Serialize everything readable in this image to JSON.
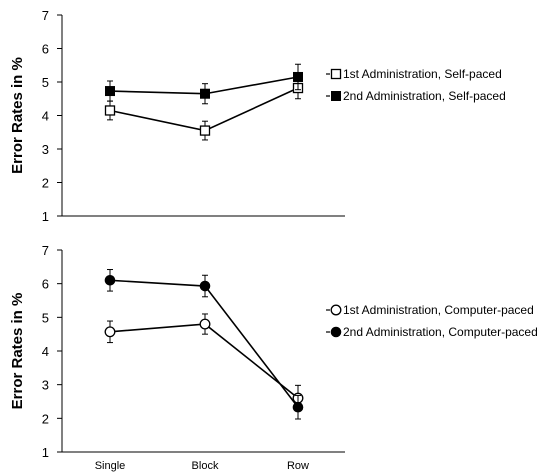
{
  "chart_data": [
    {
      "type": "line",
      "categories": [
        "Single",
        "Block",
        "Row"
      ],
      "ylabel": "Error Rates in %",
      "ylim": [
        1,
        7
      ],
      "yticks": [
        1,
        2,
        3,
        4,
        5,
        6,
        7
      ],
      "show_x_tick_labels": false,
      "legend_position": "right",
      "series": [
        {
          "name": "1st Administration, Self-paced",
          "marker": "open-square",
          "values": [
            4.15,
            3.55,
            4.82
          ],
          "errors": [
            0.28,
            0.28,
            0.32
          ]
        },
        {
          "name": "2nd Administration, Self-paced",
          "marker": "filled-square",
          "values": [
            4.73,
            4.65,
            5.15
          ],
          "errors": [
            0.3,
            0.3,
            0.38
          ]
        }
      ]
    },
    {
      "type": "line",
      "categories": [
        "Single",
        "Block",
        "Row"
      ],
      "ylabel": "Error Rates in %",
      "ylim": [
        1,
        7
      ],
      "yticks": [
        1,
        2,
        3,
        4,
        5,
        6,
        7
      ],
      "show_x_tick_labels": true,
      "legend_position": "right",
      "series": [
        {
          "name": "1st Administration, Computer-paced",
          "marker": "open-circle",
          "values": [
            4.57,
            4.8,
            2.6
          ],
          "errors": [
            0.32,
            0.3,
            0.38
          ]
        },
        {
          "name": "2nd Administration, Computer-paced",
          "marker": "filled-circle",
          "values": [
            6.1,
            5.93,
            2.33
          ],
          "errors": [
            0.32,
            0.32,
            0.35
          ]
        }
      ]
    }
  ]
}
